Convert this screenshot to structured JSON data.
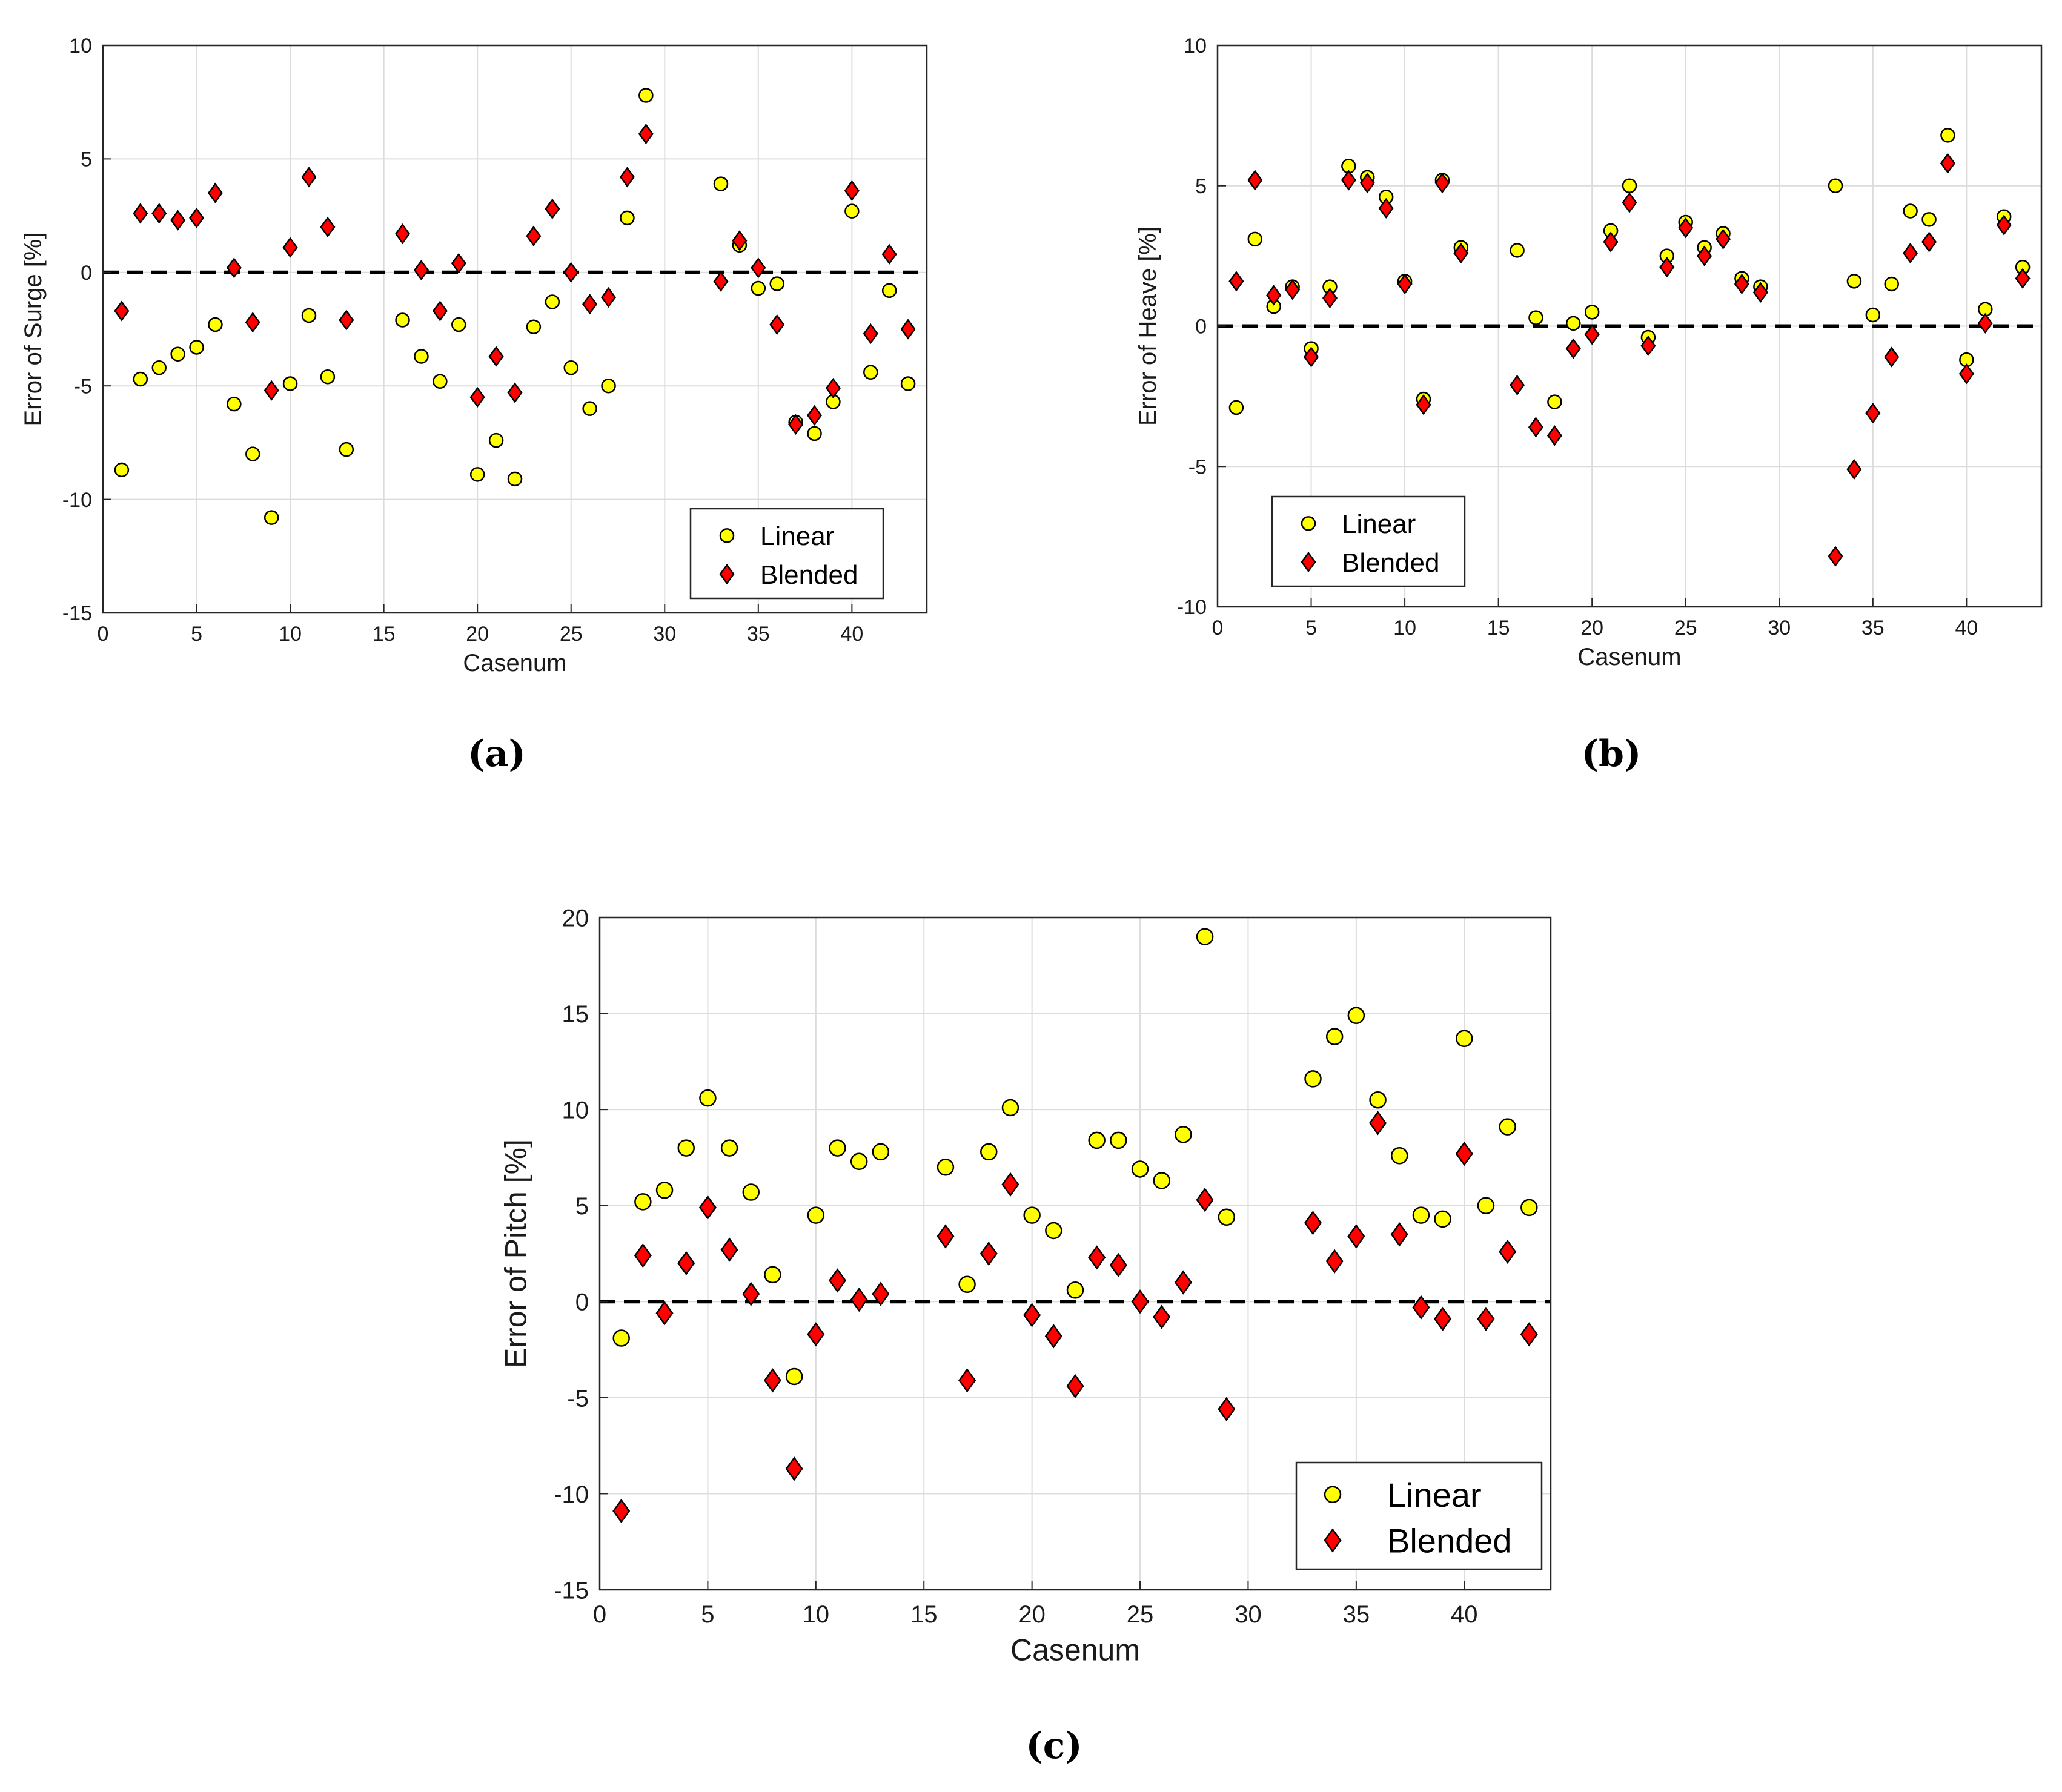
{
  "colors": {
    "linear_fill": "#ffff00",
    "blended_fill": "#ff0000",
    "marker_stroke": "#000000",
    "grid": "#dcdcdc",
    "zero_line": "#000000"
  },
  "legend": {
    "linear": "Linear",
    "blended": "Blended"
  },
  "chart_data": [
    {
      "id": "a",
      "caption": "(a)",
      "type": "scatter",
      "xlabel": "Casenum",
      "ylabel": "Error  of  Surge [%]",
      "xlim": [
        0,
        44
      ],
      "ylim": [
        -15,
        10
      ],
      "xticks": [
        0,
        5,
        10,
        15,
        20,
        25,
        30,
        35,
        40
      ],
      "xtick_labels": [
        "0",
        "5",
        "10",
        "15",
        "20",
        "25",
        "30",
        "35",
        "40"
      ],
      "yticks": [
        -15,
        -10,
        -5,
        0,
        5,
        10
      ],
      "ytick_labels": [
        "-15",
        "-10",
        "-5",
        "0",
        "5",
        "10"
      ],
      "legend_position": "bottom-right",
      "series": [
        {
          "name": "Linear",
          "x": [
            1,
            2,
            3,
            4,
            5,
            6,
            7,
            8,
            9,
            10,
            11,
            12,
            13,
            16,
            17,
            18,
            19,
            20,
            21,
            22,
            23,
            24,
            25,
            26,
            27,
            28,
            29,
            33,
            34,
            35,
            36,
            37,
            38,
            39,
            40,
            41,
            42,
            43
          ],
          "y": [
            -8.7,
            -4.7,
            -4.2,
            -3.6,
            -3.3,
            -2.3,
            -5.8,
            -8.0,
            -10.8,
            -4.9,
            -1.9,
            -4.6,
            -7.8,
            -2.1,
            -3.7,
            -4.8,
            -2.3,
            -8.9,
            -7.4,
            -9.1,
            -2.4,
            -1.3,
            -4.2,
            -6.0,
            -5.0,
            2.4,
            7.8,
            3.9,
            1.2,
            -0.7,
            -0.5,
            -6.6,
            -7.1,
            -5.7,
            2.7,
            -4.4,
            -0.8,
            -4.9
          ]
        },
        {
          "name": "Blended",
          "x": [
            1,
            2,
            3,
            4,
            5,
            6,
            7,
            8,
            9,
            10,
            11,
            12,
            13,
            16,
            17,
            18,
            19,
            20,
            21,
            22,
            23,
            24,
            25,
            26,
            27,
            28,
            29,
            33,
            34,
            35,
            36,
            37,
            38,
            39,
            40,
            41,
            42,
            43
          ],
          "y": [
            -1.7,
            2.6,
            2.6,
            2.3,
            2.4,
            3.5,
            0.2,
            -2.2,
            -5.2,
            1.1,
            4.2,
            2.0,
            -2.1,
            1.7,
            0.1,
            -1.7,
            0.4,
            -5.5,
            -3.7,
            -5.3,
            1.6,
            2.8,
            0.0,
            -1.4,
            -1.1,
            4.2,
            6.1,
            -0.4,
            1.4,
            0.2,
            -2.3,
            -6.7,
            -6.3,
            -5.1,
            3.6,
            -2.7,
            0.8,
            -2.5
          ]
        }
      ]
    },
    {
      "id": "b",
      "caption": "(b)",
      "type": "scatter",
      "xlabel": "Casenum",
      "ylabel": "Error  of  Heave [%]",
      "xlim": [
        0,
        44
      ],
      "ylim": [
        -10,
        10
      ],
      "xticks": [
        0,
        5,
        10,
        15,
        20,
        25,
        30,
        35,
        40
      ],
      "xtick_labels": [
        "0",
        "5",
        "10",
        "15",
        "20",
        "25",
        "30",
        "35",
        "40"
      ],
      "yticks": [
        -10,
        -5,
        0,
        5,
        10
      ],
      "ytick_labels": [
        "-10",
        "-5",
        "0",
        "5",
        "10"
      ],
      "legend_position": "bottom-left",
      "series": [
        {
          "name": "Linear",
          "x": [
            1,
            2,
            3,
            4,
            5,
            6,
            7,
            8,
            9,
            10,
            11,
            12,
            13,
            16,
            17,
            18,
            19,
            20,
            21,
            22,
            23,
            24,
            25,
            26,
            27,
            28,
            29,
            33,
            34,
            35,
            36,
            37,
            38,
            39,
            40,
            41,
            42,
            43
          ],
          "y": [
            -2.9,
            3.1,
            0.7,
            1.4,
            -0.8,
            1.4,
            5.7,
            5.3,
            4.6,
            1.6,
            -2.6,
            5.2,
            2.8,
            2.7,
            0.3,
            -2.7,
            0.1,
            0.5,
            3.4,
            5.0,
            -0.4,
            2.5,
            3.7,
            2.8,
            3.3,
            1.7,
            1.4,
            5.0,
            1.6,
            0.4,
            1.5,
            4.1,
            3.8,
            6.8,
            -1.2,
            0.6,
            3.9,
            2.1
          ]
        },
        {
          "name": "Blended",
          "x": [
            1,
            2,
            3,
            4,
            5,
            6,
            7,
            8,
            9,
            10,
            11,
            12,
            13,
            16,
            17,
            18,
            19,
            20,
            21,
            22,
            23,
            24,
            25,
            26,
            27,
            28,
            29,
            33,
            34,
            35,
            36,
            37,
            38,
            39,
            40,
            41,
            42,
            43
          ],
          "y": [
            1.6,
            5.2,
            1.1,
            1.3,
            -1.1,
            1.0,
            5.2,
            5.1,
            4.2,
            1.5,
            -2.8,
            5.1,
            2.6,
            -2.1,
            -3.6,
            -3.9,
            -0.8,
            -0.3,
            3.0,
            4.4,
            -0.7,
            2.1,
            3.5,
            2.5,
            3.1,
            1.5,
            1.2,
            -8.2,
            -5.1,
            -3.1,
            -1.1,
            2.6,
            3.0,
            5.8,
            -1.7,
            0.1,
            3.6,
            1.7
          ]
        }
      ]
    },
    {
      "id": "c",
      "caption": "(c)",
      "type": "scatter",
      "xlabel": "Casenum",
      "ylabel": "Error  of  Pitch [%]",
      "xlim": [
        0,
        44
      ],
      "ylim": [
        -15,
        20
      ],
      "xticks": [
        0,
        5,
        10,
        15,
        20,
        25,
        30,
        35,
        40
      ],
      "xtick_labels": [
        "0",
        "5",
        "10",
        "15",
        "20",
        "25",
        "30",
        "35",
        "40"
      ],
      "yticks": [
        -15,
        -10,
        -5,
        0,
        5,
        10,
        15,
        20
      ],
      "ytick_labels": [
        "-15",
        "-10",
        "-5",
        "0",
        "5",
        "10",
        "15",
        "20"
      ],
      "legend_position": "bottom-right",
      "series": [
        {
          "name": "Linear",
          "x": [
            1,
            2,
            3,
            4,
            5,
            6,
            7,
            8,
            9,
            10,
            11,
            12,
            13,
            16,
            17,
            18,
            19,
            20,
            21,
            22,
            23,
            24,
            25,
            26,
            27,
            28,
            29,
            33,
            34,
            35,
            36,
            37,
            38,
            39,
            40,
            41,
            42,
            43
          ],
          "y": [
            -1.9,
            5.2,
            5.8,
            8.0,
            10.6,
            8.0,
            5.7,
            1.4,
            -3.9,
            4.5,
            8.0,
            7.3,
            7.8,
            7.0,
            0.9,
            7.8,
            10.1,
            4.5,
            3.7,
            0.6,
            8.4,
            8.4,
            6.9,
            6.3,
            8.7,
            19.0,
            4.4,
            11.6,
            13.8,
            14.9,
            10.5,
            7.6,
            4.5,
            4.3,
            13.7,
            5.0,
            9.1,
            4.9
          ]
        },
        {
          "name": "Blended",
          "x": [
            1,
            2,
            3,
            4,
            5,
            6,
            7,
            8,
            9,
            10,
            11,
            12,
            13,
            16,
            17,
            18,
            19,
            20,
            21,
            22,
            23,
            24,
            25,
            26,
            27,
            28,
            29,
            33,
            34,
            35,
            36,
            37,
            38,
            39,
            40,
            41,
            42,
            43
          ],
          "y": [
            -10.9,
            2.4,
            -0.6,
            2.0,
            4.9,
            2.7,
            0.4,
            -4.1,
            -8.7,
            -1.7,
            1.1,
            0.1,
            0.4,
            3.4,
            -4.1,
            2.5,
            6.1,
            -0.7,
            -1.8,
            -4.4,
            2.3,
            1.9,
            0.0,
            -0.8,
            1.0,
            5.3,
            -5.6,
            4.1,
            2.1,
            3.4,
            9.3,
            3.5,
            -0.3,
            -0.9,
            7.7,
            -0.9,
            2.6,
            -1.7
          ]
        }
      ]
    }
  ]
}
